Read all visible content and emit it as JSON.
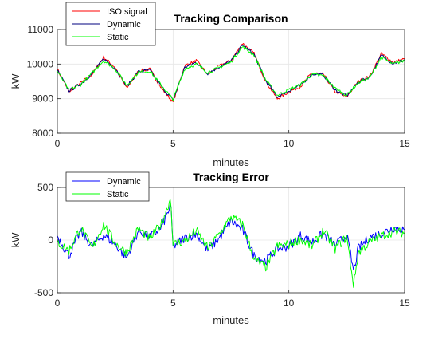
{
  "chart_data": [
    {
      "type": "line",
      "title": "Tracking Comparison",
      "xlabel": "minutes",
      "ylabel": "kW",
      "xlim": [
        0,
        15
      ],
      "ylim": [
        8000,
        11000
      ],
      "xticks": [
        0,
        5,
        10,
        15
      ],
      "yticks": [
        8000,
        9000,
        10000,
        11000
      ],
      "xtick_labels": [
        "0",
        "5",
        "10",
        "15"
      ],
      "ytick_labels": [
        "8000",
        "9000",
        "10000",
        "11000"
      ],
      "grid": true,
      "legend_position": "top-left",
      "x": [
        0,
        0.5,
        1,
        1.5,
        2,
        2.5,
        3,
        3.5,
        4,
        4.5,
        5,
        5.5,
        6,
        6.5,
        7,
        7.5,
        8,
        8.5,
        9,
        9.5,
        10,
        10.5,
        11,
        11.5,
        12,
        12.5,
        13,
        13.5,
        14,
        14.5,
        15
      ],
      "series": [
        {
          "name": "ISO signal",
          "color": "#ff0000",
          "values": [
            9850,
            9200,
            9450,
            9700,
            10200,
            9900,
            9300,
            9800,
            9850,
            9300,
            8900,
            9950,
            10100,
            9700,
            9950,
            10100,
            10600,
            10300,
            9500,
            9000,
            9200,
            9350,
            9750,
            9700,
            9200,
            9050,
            9500,
            9650,
            10300,
            10050,
            10150
          ]
        },
        {
          "name": "Dynamic",
          "color": "#00007f",
          "values": [
            9820,
            9230,
            9420,
            9720,
            10150,
            9880,
            9350,
            9780,
            9820,
            9350,
            8950,
            9900,
            10050,
            9730,
            9920,
            10080,
            10550,
            10280,
            9520,
            9050,
            9230,
            9380,
            9720,
            9680,
            9250,
            9080,
            9480,
            9630,
            10250,
            10020,
            10120
          ]
        },
        {
          "name": "Static",
          "color": "#00ff00",
          "values": [
            9800,
            9250,
            9400,
            9740,
            10100,
            9860,
            9380,
            9760,
            9800,
            9380,
            8980,
            9860,
            10000,
            9760,
            9900,
            10060,
            10500,
            10260,
            9550,
            9100,
            9260,
            9400,
            9700,
            9660,
            9300,
            9100,
            9460,
            9610,
            10200,
            10000,
            10100
          ]
        }
      ]
    },
    {
      "type": "line",
      "title": "Tracking Error",
      "xlabel": "minutes",
      "ylabel": "kW",
      "xlim": [
        0,
        15
      ],
      "ylim": [
        -500,
        500
      ],
      "xticks": [
        0,
        5,
        10,
        15
      ],
      "yticks": [
        -500,
        0,
        500
      ],
      "xtick_labels": [
        "0",
        "5",
        "10",
        "15"
      ],
      "ytick_labels": [
        "-500",
        "0",
        "500"
      ],
      "grid": true,
      "legend_position": "top-left",
      "x": [
        0,
        0.5,
        1,
        1.5,
        2,
        2.5,
        3,
        3.5,
        4,
        4.5,
        4.9,
        5,
        5.5,
        6,
        6.5,
        7,
        7.5,
        8,
        8.5,
        9,
        9.5,
        10,
        10.5,
        11,
        11.5,
        12,
        12.5,
        12.8,
        13,
        13.5,
        14,
        14.5,
        15
      ],
      "series": [
        {
          "name": "Dynamic",
          "color": "#0000ff",
          "values": [
            40,
            -150,
            80,
            -60,
            50,
            -40,
            -170,
            90,
            30,
            120,
            330,
            -60,
            20,
            60,
            -100,
            20,
            180,
            100,
            -150,
            -200,
            -80,
            -60,
            40,
            -20,
            60,
            -50,
            50,
            -300,
            -80,
            30,
            60,
            120,
            100
          ]
        },
        {
          "name": "Static",
          "color": "#00ff00",
          "values": [
            -20,
            -100,
            120,
            -80,
            150,
            -30,
            -120,
            110,
            10,
            160,
            400,
            -40,
            -10,
            90,
            -80,
            60,
            220,
            150,
            -180,
            -260,
            -60,
            -40,
            10,
            -60,
            90,
            -80,
            30,
            -430,
            -120,
            -20,
            40,
            80,
            70
          ]
        }
      ]
    }
  ]
}
